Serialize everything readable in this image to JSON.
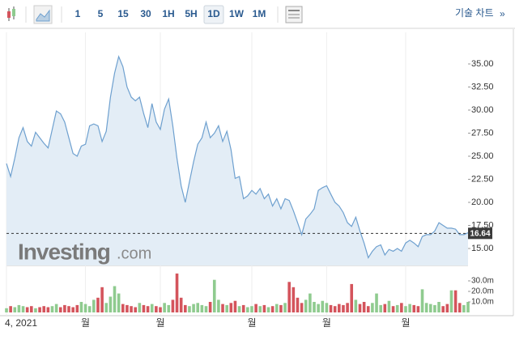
{
  "toolbar": {
    "intervals": [
      "1",
      "5",
      "15",
      "30",
      "1H",
      "5H",
      "1D",
      "1W",
      "1M"
    ],
    "active": 6,
    "chart_link": "기술 차트",
    "chart_link_icon": "»"
  },
  "watermark": {
    "brand": "Investing",
    "suffix": ".com"
  },
  "chart_data": [
    {
      "type": "line",
      "categories": [
        "4, 2021",
        null,
        null,
        null,
        null,
        null,
        null,
        null,
        null,
        null,
        null,
        null,
        null,
        null,
        null,
        null,
        null,
        null,
        null,
        "월",
        null,
        null,
        null,
        null,
        null,
        null,
        null,
        null,
        null,
        null,
        null,
        null,
        null,
        null,
        null,
        null,
        null,
        "월",
        null,
        null,
        null,
        null,
        null,
        null,
        null,
        null,
        null,
        null,
        null,
        null,
        null,
        null,
        null,
        null,
        null,
        null,
        null,
        null,
        null,
        "월",
        null,
        null,
        null,
        null,
        null,
        null,
        null,
        null,
        null,
        null,
        null,
        null,
        null,
        null,
        null,
        null,
        null,
        "월",
        null,
        null,
        null,
        null,
        null,
        null,
        null,
        null,
        null,
        null,
        null,
        null,
        null,
        null,
        null,
        null,
        null,
        null,
        "월",
        null,
        null,
        null,
        null,
        null,
        null,
        null,
        null,
        null,
        null,
        null,
        null,
        null,
        null,
        null
      ],
      "values": [
        24.2,
        22.8,
        24.8,
        27.0,
        28.1,
        26.6,
        26.1,
        27.6,
        27.0,
        26.4,
        25.9,
        27.9,
        29.9,
        29.6,
        28.7,
        27.0,
        25.3,
        25.0,
        26.1,
        26.3,
        28.3,
        28.5,
        28.3,
        26.6,
        27.7,
        31.4,
        34.0,
        35.8,
        34.7,
        32.5,
        31.4,
        31.0,
        31.4,
        29.6,
        28.1,
        30.7,
        28.7,
        27.9,
        30.1,
        31.2,
        28.3,
        24.8,
        21.8,
        20.0,
        22.2,
        24.4,
        26.3,
        27.0,
        28.7,
        27.0,
        27.5,
        28.3,
        26.6,
        27.7,
        25.7,
        22.6,
        22.8,
        20.4,
        20.7,
        21.3,
        20.9,
        21.5,
        20.4,
        20.9,
        19.6,
        20.4,
        19.3,
        20.4,
        20.2,
        19.1,
        17.8,
        16.5,
        18.2,
        18.7,
        19.3,
        21.3,
        21.6,
        21.8,
        20.9,
        20.0,
        19.6,
        18.9,
        17.8,
        17.4,
        18.4,
        16.9,
        15.6,
        14.0,
        14.7,
        15.2,
        15.4,
        14.3,
        14.9,
        14.7,
        15.0,
        14.7,
        15.6,
        15.9,
        15.6,
        15.2,
        16.3,
        16.5,
        16.5,
        16.9,
        17.8,
        17.5,
        17.2,
        17.2,
        17.1,
        16.5,
        16.5,
        16.7
      ],
      "color": "#6ea0cf",
      "fill": "#e3edf6",
      "ylim": [
        13.16,
        38.42
      ],
      "yticks": [
        {
          "value": 15,
          "label": "15.00"
        },
        {
          "value": 17.5,
          "label": "17.50"
        },
        {
          "value": 20,
          "label": "20.00"
        },
        {
          "value": 22.5,
          "label": "22.50"
        },
        {
          "value": 25,
          "label": "25.00"
        },
        {
          "value": 27.5,
          "label": "27.50"
        },
        {
          "value": 30,
          "label": "30.00"
        },
        {
          "value": 32.5,
          "label": "32.50"
        },
        {
          "value": 35,
          "label": "35.00"
        }
      ],
      "last_price": 16.64,
      "grid": true
    },
    {
      "type": "bar",
      "values": [
        4,
        6,
        5,
        7,
        6,
        5,
        6,
        4,
        5,
        6,
        5,
        6,
        8,
        5,
        7,
        6,
        5,
        7,
        10,
        8,
        6,
        12,
        14,
        24,
        9,
        15,
        25,
        18,
        8,
        7,
        6,
        5,
        9,
        7,
        6,
        8,
        6,
        5,
        9,
        7,
        12,
        37,
        14,
        7,
        6,
        8,
        9,
        7,
        6,
        10,
        31,
        12,
        8,
        7,
        9,
        11,
        6,
        7,
        5,
        6,
        8,
        6,
        7,
        5,
        6,
        8,
        7,
        9,
        29,
        24,
        14,
        9,
        12,
        18,
        10,
        8,
        11,
        9,
        7,
        6,
        8,
        7,
        9,
        27,
        12,
        8,
        10,
        6,
        9,
        18,
        7,
        8,
        11,
        6,
        7,
        9,
        6,
        8,
        7,
        6,
        22,
        9,
        8,
        7,
        10,
        6,
        8,
        21,
        21,
        9,
        7,
        10
      ],
      "colors": [
        "#8fcb8f",
        "#d4545c",
        "#8fcb8f",
        "#8fcb8f",
        "#8fcb8f",
        "#d4545c",
        "#d4545c",
        "#8fcb8f",
        "#d4545c",
        "#d4545c",
        "#d4545c",
        "#8fcb8f",
        "#8fcb8f",
        "#d4545c",
        "#d4545c",
        "#d4545c",
        "#d4545c",
        "#d4545c",
        "#8fcb8f",
        "#8fcb8f",
        "#8fcb8f",
        "#8fcb8f",
        "#d4545c",
        "#d4545c",
        "#8fcb8f",
        "#8fcb8f",
        "#8fcb8f",
        "#8fcb8f",
        "#d4545c",
        "#d4545c",
        "#d4545c",
        "#d4545c",
        "#8fcb8f",
        "#d4545c",
        "#d4545c",
        "#8fcb8f",
        "#d4545c",
        "#d4545c",
        "#8fcb8f",
        "#8fcb8f",
        "#d4545c",
        "#d4545c",
        "#d4545c",
        "#d4545c",
        "#8fcb8f",
        "#8fcb8f",
        "#8fcb8f",
        "#8fcb8f",
        "#8fcb8f",
        "#d4545c",
        "#8fcb8f",
        "#8fcb8f",
        "#d4545c",
        "#8fcb8f",
        "#d4545c",
        "#d4545c",
        "#8fcb8f",
        "#d4545c",
        "#8fcb8f",
        "#8fcb8f",
        "#d4545c",
        "#8fcb8f",
        "#d4545c",
        "#8fcb8f",
        "#d4545c",
        "#8fcb8f",
        "#d4545c",
        "#8fcb8f",
        "#d4545c",
        "#d4545c",
        "#d4545c",
        "#d4545c",
        "#8fcb8f",
        "#8fcb8f",
        "#8fcb8f",
        "#8fcb8f",
        "#8fcb8f",
        "#8fcb8f",
        "#d4545c",
        "#d4545c",
        "#d4545c",
        "#d4545c",
        "#d4545c",
        "#d4545c",
        "#8fcb8f",
        "#d4545c",
        "#d4545c",
        "#d4545c",
        "#8fcb8f",
        "#8fcb8f",
        "#8fcb8f",
        "#d4545c",
        "#8fcb8f",
        "#d4545c",
        "#8fcb8f",
        "#d4545c",
        "#8fcb8f",
        "#8fcb8f",
        "#d4545c",
        "#d4545c",
        "#8fcb8f",
        "#8fcb8f",
        "#8fcb8f",
        "#8fcb8f",
        "#8fcb8f",
        "#d4545c",
        "#d4545c",
        "#8fcb8f",
        "#d4545c",
        "#d4545c",
        "#8fcb8f",
        "#8fcb8f"
      ],
      "ylim": [
        0,
        37.7
      ],
      "yticks": [
        {
          "value": 10,
          "label": "10.0m"
        },
        {
          "value": 20,
          "label": "20.0m"
        },
        {
          "value": 30,
          "label": "30.0m"
        }
      ]
    }
  ]
}
